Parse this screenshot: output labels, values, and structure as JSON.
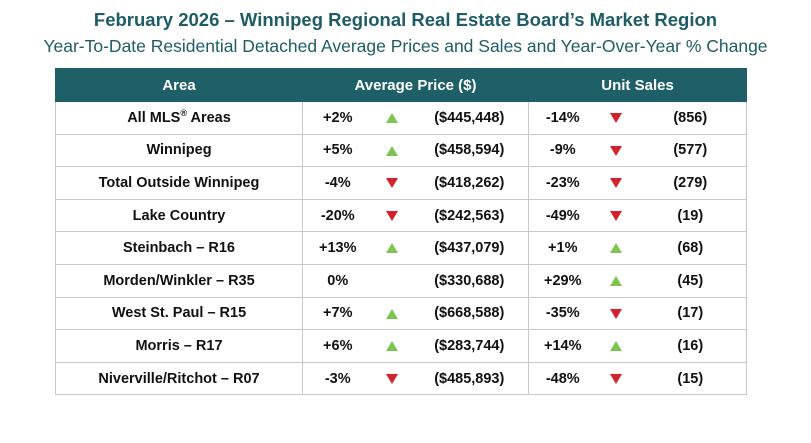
{
  "chart_data": {
    "type": "table",
    "title": "February 2026 – Winnipeg Regional Real Estate Board’s Market Region",
    "subtitle": "Year-To-Date Residential Detached Average Prices and Sales and Year-Over-Year % Change",
    "columns": [
      "Area",
      "Average Price ($)",
      "Unit Sales"
    ],
    "colors": {
      "header_bg": "#1e5f68",
      "up": "#7cc44e",
      "down": "#d3222a",
      "title": "#1e5c66"
    },
    "rows": [
      {
        "area": "All MLS",
        "area_sup": "®",
        "area_suffix": " Areas",
        "price_pct": "+2%",
        "price_dir": "up",
        "price": "($445,448)",
        "sales_pct": "-14%",
        "sales_dir": "down",
        "sales": "(856)"
      },
      {
        "area": "Winnipeg",
        "price_pct": "+5%",
        "price_dir": "up",
        "price": "($458,594)",
        "sales_pct": "-9%",
        "sales_dir": "down",
        "sales": "(577)"
      },
      {
        "area": "Total Outside Winnipeg",
        "price_pct": "-4%",
        "price_dir": "down",
        "price": "($418,262)",
        "sales_pct": "-23%",
        "sales_dir": "down",
        "sales": "(279)"
      },
      {
        "area": "Lake Country",
        "price_pct": "-20%",
        "price_dir": "down",
        "price": "($242,563)",
        "sales_pct": "-49%",
        "sales_dir": "down",
        "sales": "(19)"
      },
      {
        "area": "Steinbach – R16",
        "price_pct": "+13%",
        "price_dir": "up",
        "price": "($437,079)",
        "sales_pct": "+1%",
        "sales_dir": "up",
        "sales": "(68)"
      },
      {
        "area": "Morden/Winkler – R35",
        "price_pct": "0%",
        "price_dir": "none",
        "price": "($330,688)",
        "sales_pct": "+29%",
        "sales_dir": "up",
        "sales": "(45)"
      },
      {
        "area": "West St. Paul – R15",
        "price_pct": "+7%",
        "price_dir": "up",
        "price": "($668,588)",
        "sales_pct": "-35%",
        "sales_dir": "down",
        "sales": "(17)"
      },
      {
        "area": "Morris – R17",
        "price_pct": "+6%",
        "price_dir": "up",
        "price": "($283,744)",
        "sales_pct": "+14%",
        "sales_dir": "up",
        "sales": "(16)"
      },
      {
        "area": "Niverville/Ritchot – R07",
        "price_pct": "-3%",
        "price_dir": "down",
        "price": "($485,893)",
        "sales_pct": "-48%",
        "sales_dir": "down",
        "sales": "(15)"
      }
    ]
  }
}
